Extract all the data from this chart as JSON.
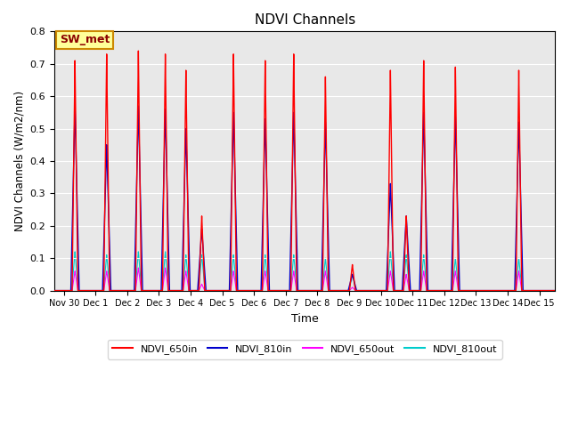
{
  "title": "NDVI Channels",
  "xlabel": "Time",
  "ylabel": "NDVI Channels (W/m2/nm)",
  "ylim": [
    0.0,
    0.8
  ],
  "xlim_days": [
    -0.3,
    15.5
  ],
  "background_color": "#e8e8e8",
  "annotation_text": "SW_met",
  "annotation_bg": "#ffff99",
  "annotation_border": "#cc8800",
  "colors": {
    "NDVI_650in": "#ff0000",
    "NDVI_810in": "#0000cc",
    "NDVI_650out": "#ff00ff",
    "NDVI_810out": "#00cccc"
  },
  "peaks_650in": [
    0.71,
    0.73,
    0.74,
    0.73,
    0.68,
    0.23,
    0.73,
    0.71,
    0.73,
    0.66,
    0.08,
    0.68,
    0.23,
    0.71,
    0.69,
    0.68
  ],
  "peaks_810in": [
    0.57,
    0.45,
    0.57,
    0.56,
    0.5,
    0.19,
    0.55,
    0.53,
    0.55,
    0.52,
    0.05,
    0.33,
    0.23,
    0.55,
    0.54,
    0.52
  ],
  "peaks_650out": [
    0.06,
    0.06,
    0.07,
    0.07,
    0.06,
    0.02,
    0.06,
    0.06,
    0.06,
    0.06,
    0.01,
    0.06,
    0.05,
    0.06,
    0.06,
    0.06
  ],
  "peaks_810out": [
    0.12,
    0.11,
    0.12,
    0.12,
    0.11,
    0.11,
    0.11,
    0.11,
    0.11,
    0.1,
    0.05,
    0.12,
    0.11,
    0.11,
    0.1,
    0.1
  ],
  "peak_centers": [
    0.35,
    1.35,
    2.35,
    3.2,
    3.85,
    4.35,
    5.35,
    6.35,
    7.25,
    8.25,
    9.1,
    10.3,
    10.8,
    11.35,
    12.35,
    14.35
  ],
  "tick_labels": [
    "Nov 30",
    "Dec 1",
    "Dec 2",
    "Dec 3",
    "Dec 4",
    "Dec 5",
    "Dec 6",
    "Dec 7",
    "Dec 8",
    "Dec 9",
    "Dec 10",
    "Dec 11",
    "Dec 12",
    "Dec 13",
    "Dec 14",
    "Dec 15"
  ],
  "tick_positions": [
    0,
    1,
    2,
    3,
    4,
    5,
    6,
    7,
    8,
    9,
    10,
    11,
    12,
    13,
    14,
    15
  ],
  "figsize": [
    6.4,
    4.8
  ],
  "dpi": 100
}
